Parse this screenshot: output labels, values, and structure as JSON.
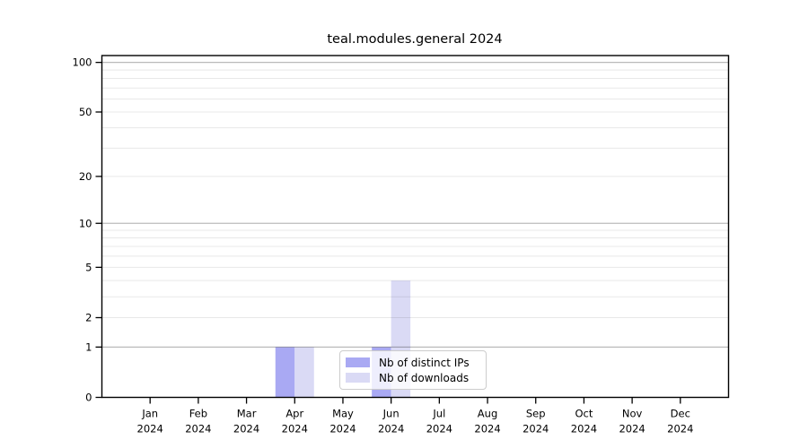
{
  "chart_data": {
    "type": "bar",
    "title": "teal.modules.general 2024",
    "categories": [
      "Jan 2024",
      "Feb 2024",
      "Mar 2024",
      "Apr 2024",
      "May 2024",
      "Jun 2024",
      "Jul 2024",
      "Aug 2024",
      "Sep 2024",
      "Oct 2024",
      "Nov 2024",
      "Dec 2024"
    ],
    "series": [
      {
        "name": "Nb of distinct IPs",
        "color": "#a9a9f3",
        "values": [
          0,
          0,
          0,
          1,
          0,
          1,
          0,
          0,
          0,
          0,
          0,
          0
        ]
      },
      {
        "name": "Nb of downloads",
        "color": "#dadaf5",
        "values": [
          0,
          0,
          0,
          1,
          0,
          4,
          0,
          0,
          0,
          0,
          0,
          0
        ]
      }
    ],
    "yscale": "log1p",
    "ylim": [
      0,
      110
    ],
    "yticks": [
      0,
      1,
      2,
      5,
      10,
      20,
      50,
      100
    ],
    "major_gridlines": [
      1,
      10,
      100
    ],
    "minor_gridlines": [
      2,
      3,
      4,
      5,
      6,
      7,
      8,
      9,
      20,
      30,
      40,
      50,
      60,
      70,
      80,
      90
    ],
    "grid": true,
    "legend_position": "lower center",
    "xlabel": "",
    "ylabel": ""
  }
}
